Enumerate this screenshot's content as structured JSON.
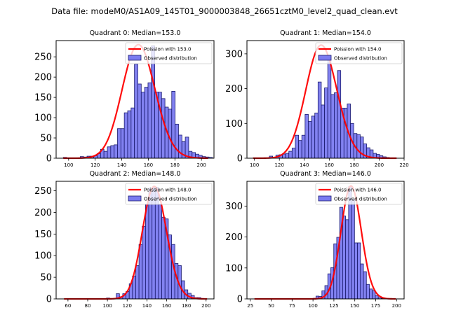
{
  "suptitle": "Data file: modeM0/AS1A09_145T01_9000003848_26651cztM0_level2_quad_clean.evt",
  "colors": {
    "bar_fill": "#7b7bf0",
    "bar_edge": "#1a1a6e",
    "line": "#ff0000"
  },
  "chart_data": [
    {
      "type": "bar",
      "title": "Quadrant 0: Median=153.0",
      "xlim": [
        90.6,
        209.4
      ],
      "ylim": [
        0,
        290
      ],
      "xticks": [
        100,
        120,
        140,
        160,
        180,
        200
      ],
      "yticks": [
        0,
        50,
        100,
        150,
        200,
        250
      ],
      "legend": {
        "loc": "upper-right",
        "entries": [
          "Poission with 153.0",
          "Observed distribution"
        ]
      },
      "bins": {
        "start": 96,
        "width": 2.55
      },
      "values": [
        2,
        0,
        0,
        0,
        1,
        4,
        3,
        5,
        5,
        6,
        11,
        22,
        17,
        28,
        31,
        33,
        73,
        73,
        112,
        117,
        124,
        232,
        183,
        163,
        175,
        186,
        277,
        163,
        163,
        147,
        126,
        121,
        165,
        84,
        57,
        41,
        52,
        17,
        14,
        10,
        7,
        4,
        3,
        2
      ],
      "poisson_curve": {
        "mu": 153.0,
        "peak": 280,
        "x_range": [
          96,
          205
        ]
      }
    },
    {
      "type": "bar",
      "title": "Quadrant 1: Median=154.0",
      "xlim": [
        94,
        220
      ],
      "ylim": [
        0,
        338
      ],
      "xticks": [
        100,
        120,
        140,
        160,
        180,
        200,
        220
      ],
      "yticks": [
        0,
        100,
        200,
        300
      ],
      "legend": {
        "loc": "upper-right",
        "entries": [
          "Poission with 154.0",
          "Observed distribution"
        ]
      },
      "bins": {
        "start": 99,
        "width": 2.6
      },
      "values": [
        1,
        0,
        0,
        0,
        0,
        6,
        3,
        9,
        10,
        12,
        14,
        20,
        29,
        66,
        51,
        66,
        126,
        106,
        121,
        130,
        219,
        153,
        202,
        283,
        183,
        188,
        252,
        144,
        144,
        156,
        100,
        71,
        68,
        61,
        41,
        30,
        24,
        14,
        11,
        7,
        4,
        2,
        1,
        1
      ],
      "poisson_curve": {
        "mu": 154.0,
        "peak": 325,
        "x_range": [
          99,
          214
        ]
      }
    },
    {
      "type": "bar",
      "title": "Quadrant 2: Median=148.0",
      "xlim": [
        48,
        208
      ],
      "ylim": [
        0,
        272
      ],
      "xticks": [
        60,
        80,
        100,
        120,
        140,
        160,
        180,
        200
      ],
      "yticks": [
        0,
        50,
        100,
        150,
        200,
        250
      ],
      "legend": {
        "loc": "upper-right",
        "entries": [
          "Poission with 148.0",
          "Observed distribution"
        ]
      },
      "bins": {
        "start": 99,
        "width": 3.3
      },
      "values": [
        2,
        0,
        0,
        12,
        5,
        12,
        17,
        35,
        53,
        77,
        126,
        168,
        219,
        256,
        258,
        258,
        219,
        189,
        185,
        148,
        126,
        82,
        77,
        42,
        21,
        13,
        8,
        3,
        3,
        1
      ],
      "poisson_curve": {
        "mu": 148.0,
        "peak": 260,
        "x_range": [
          56,
          201
        ]
      }
    },
    {
      "type": "bar",
      "title": "Quadrant 3: Median=146.0",
      "xlim": [
        21,
        209
      ],
      "ylim": [
        0,
        380
      ],
      "xticks": [
        25,
        50,
        75,
        100,
        125,
        150,
        175,
        200
      ],
      "yticks": [
        0,
        100,
        200,
        300
      ],
      "legend": {
        "loc": "upper-right",
        "entries": [
          "Poission with 146.0",
          "Observed distribution"
        ]
      },
      "bins": {
        "start": 100,
        "width": 3.55
      },
      "values": [
        2,
        9,
        8,
        26,
        43,
        81,
        101,
        178,
        199,
        296,
        268,
        256,
        363,
        322,
        181,
        181,
        113,
        88,
        47,
        32,
        27,
        11,
        4,
        2,
        1
      ],
      "poisson_curve": {
        "mu": 146.0,
        "peak": 365,
        "x_range": [
          30,
          199
        ]
      }
    }
  ]
}
